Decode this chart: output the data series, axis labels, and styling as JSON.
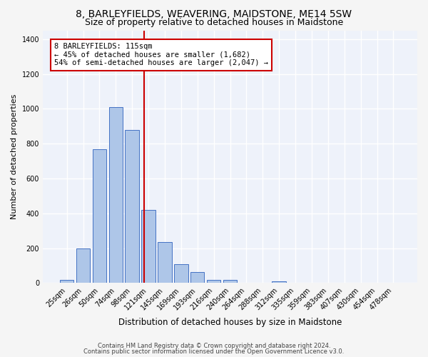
{
  "title1": "8, BARLEYFIELDS, WEAVERING, MAIDSTONE, ME14 5SW",
  "title2": "Size of property relative to detached houses in Maidstone",
  "xlabel": "Distribution of detached houses by size in Maidstone",
  "ylabel": "Number of detached properties",
  "categories": [
    "25sqm",
    "26sqm",
    "50sqm",
    "74sqm",
    "98sqm",
    "121sqm",
    "145sqm",
    "169sqm",
    "193sqm",
    "216sqm",
    "240sqm",
    "264sqm",
    "288sqm",
    "312sqm",
    "335sqm",
    "359sqm",
    "383sqm",
    "407sqm",
    "430sqm",
    "454sqm",
    "478sqm"
  ],
  "bar_heights": [
    20,
    200,
    770,
    1010,
    880,
    420,
    235,
    110,
    65,
    20,
    20,
    0,
    0,
    10,
    0,
    0,
    0,
    0,
    0,
    0,
    0
  ],
  "bar_color": "#aec6e8",
  "bar_edge_color": "#4472c4",
  "annotation_text": "8 BARLEYFIELDS: 115sqm\n← 45% of detached houses are smaller (1,682)\n54% of semi-detached houses are larger (2,047) →",
  "annotation_box_color": "#ffffff",
  "annotation_box_edge_color": "#cc0000",
  "vline_color": "#cc0000",
  "vline_x": 4.74,
  "ylim": [
    0,
    1450
  ],
  "yticks": [
    0,
    200,
    400,
    600,
    800,
    1000,
    1200,
    1400
  ],
  "footer1": "Contains HM Land Registry data © Crown copyright and database right 2024.",
  "footer2": "Contains public sector information licensed under the Open Government Licence v3.0.",
  "bg_color": "#eef2fa",
  "grid_color": "#ffffff",
  "title_fontsize": 10,
  "subtitle_fontsize": 9,
  "tick_fontsize": 7,
  "ylabel_fontsize": 8,
  "xlabel_fontsize": 8.5,
  "footer_fontsize": 6,
  "annotation_fontsize": 7.5
}
